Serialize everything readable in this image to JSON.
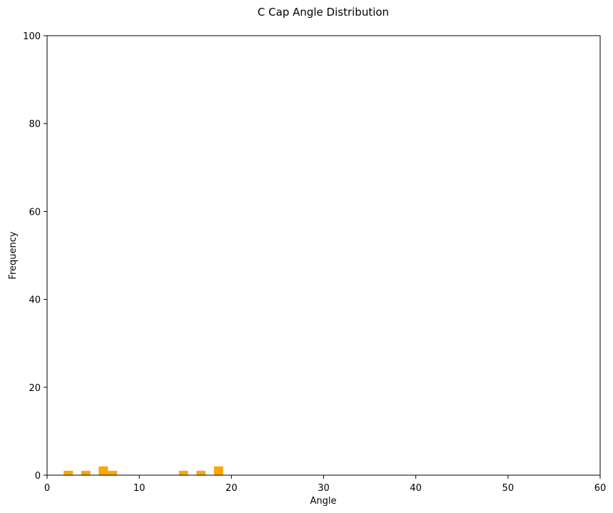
{
  "chart_data": {
    "type": "bar",
    "title": "C Cap Angle Distribution",
    "xlabel": "Angle",
    "ylabel": "Frequency",
    "xlim": [
      0,
      60
    ],
    "ylim": [
      0,
      100
    ],
    "xticks": [
      0,
      10,
      20,
      30,
      40,
      50,
      60
    ],
    "yticks": [
      0,
      20,
      40,
      60,
      80,
      100
    ],
    "grid": false,
    "bar_color": "#ffa500",
    "bin_width": 1,
    "bins": [
      {
        "x": 2.3,
        "value": 1
      },
      {
        "x": 4.2,
        "value": 1
      },
      {
        "x": 6.1,
        "value": 2
      },
      {
        "x": 7.1,
        "value": 1
      },
      {
        "x": 14.8,
        "value": 1
      },
      {
        "x": 16.7,
        "value": 1
      },
      {
        "x": 18.6,
        "value": 2
      }
    ]
  }
}
